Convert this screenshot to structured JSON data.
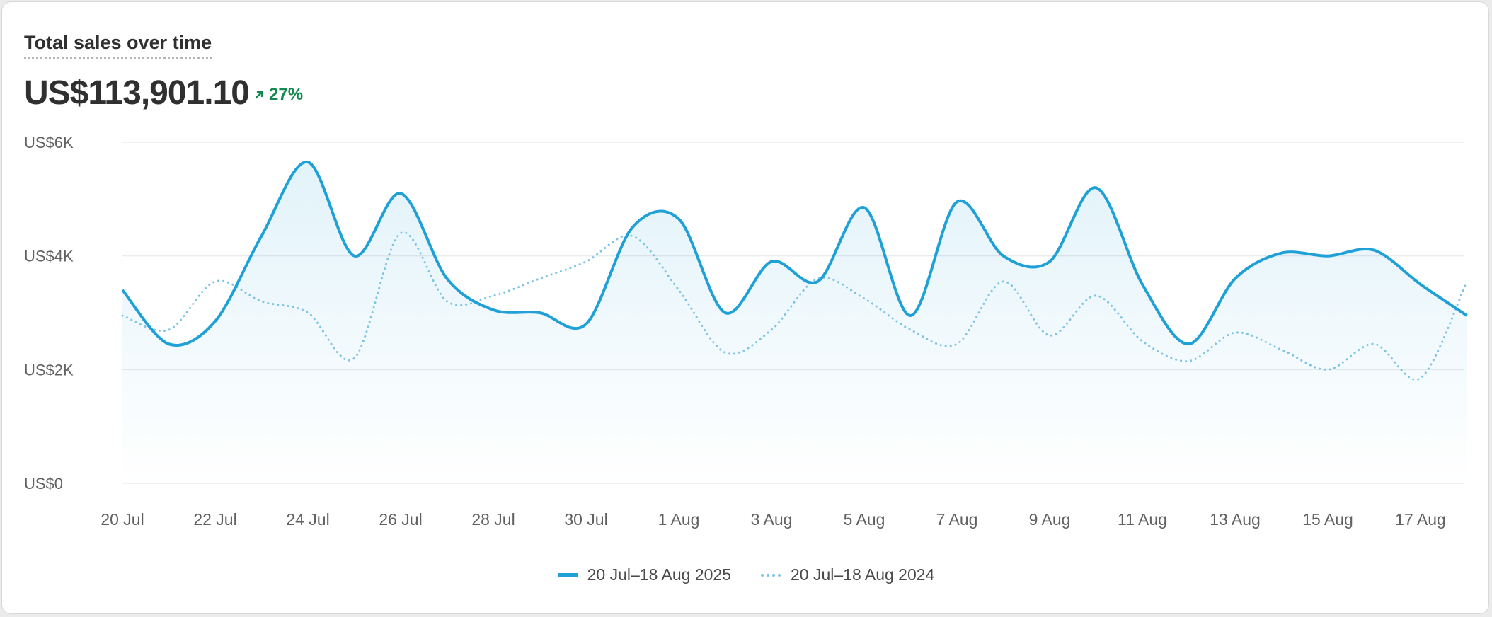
{
  "header": {
    "title": "Total sales over time",
    "total": "US$113,901.10",
    "change": "27%"
  },
  "colors": {
    "current_series": "#1fa1d8",
    "previous_series": "#7cc4e4",
    "positive_change": "#128a4f",
    "grid": "#ebebeb"
  },
  "icons": {
    "change": "arrow-up-right-icon"
  },
  "chart_data": {
    "type": "line",
    "title": "Total sales over time",
    "xlabel": "",
    "ylabel": "",
    "ylim": [
      0,
      6000
    ],
    "y_ticks": [
      {
        "value": 0,
        "label": "US$0"
      },
      {
        "value": 2000,
        "label": "US$2K"
      },
      {
        "value": 4000,
        "label": "US$4K"
      },
      {
        "value": 6000,
        "label": "US$6K"
      }
    ],
    "x": [
      "20 Jul",
      "21 Jul",
      "22 Jul",
      "23 Jul",
      "24 Jul",
      "25 Jul",
      "26 Jul",
      "27 Jul",
      "28 Jul",
      "29 Jul",
      "30 Jul",
      "31 Jul",
      "1 Aug",
      "2 Aug",
      "3 Aug",
      "4 Aug",
      "5 Aug",
      "6 Aug",
      "7 Aug",
      "8 Aug",
      "9 Aug",
      "10 Aug",
      "11 Aug",
      "12 Aug",
      "13 Aug",
      "14 Aug",
      "15 Aug",
      "16 Aug",
      "17 Aug",
      "18 Aug"
    ],
    "x_tick_labels": [
      "20 Jul",
      "22 Jul",
      "24 Jul",
      "26 Jul",
      "28 Jul",
      "30 Jul",
      "1 Aug",
      "3 Aug",
      "5 Aug",
      "7 Aug",
      "9 Aug",
      "11 Aug",
      "13 Aug",
      "15 Aug",
      "17 Aug"
    ],
    "series": [
      {
        "name": "20 Jul–18 Aug 2025",
        "style": "solid",
        "area_fill": true,
        "values": [
          3400,
          2450,
          2850,
          4350,
          5650,
          4000,
          5100,
          3600,
          3050,
          3000,
          2800,
          4500,
          4650,
          3000,
          3900,
          3550,
          4850,
          2950,
          4950,
          4000,
          3900,
          5200,
          3500,
          2450,
          3600,
          4050,
          4000,
          4100,
          3500,
          2950
        ]
      },
      {
        "name": "20 Jul–18 Aug 2024",
        "style": "dotted",
        "area_fill": false,
        "values": [
          2950,
          2700,
          3550,
          3200,
          3000,
          2200,
          4400,
          3200,
          3300,
          3600,
          3900,
          4350,
          3400,
          2300,
          2700,
          3600,
          3250,
          2700,
          2450,
          3550,
          2600,
          3300,
          2500,
          2150,
          2650,
          2350,
          2000,
          2450,
          1850,
          3550
        ]
      }
    ],
    "grid": true,
    "legend_position": "bottom-center"
  }
}
